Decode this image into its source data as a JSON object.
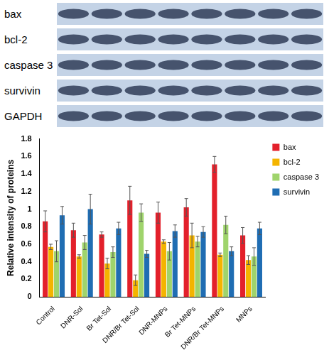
{
  "blot_labels": [
    "bax",
    "bcl-2",
    "caspase 3",
    "survivin",
    "GAPDH"
  ],
  "chart_data": {
    "type": "bar",
    "y_label": "Relative intensity of proteins",
    "categories": [
      "Control",
      "DNR-Sol",
      "Br Tet-Sol",
      "DNR/Br Tet-Sol",
      "DNR-MNPs",
      "Br Tet-MNPs",
      "DNR/Br Tet-MNPs",
      "MNPs"
    ],
    "series": [
      {
        "name": "bax",
        "color": "#e3202b",
        "values": [
          0.86,
          0.76,
          0.71,
          1.1,
          0.96,
          1.02,
          1.51,
          0.7
        ],
        "errors": [
          0.12,
          0.08,
          0.03,
          0.16,
          0.12,
          0.1,
          0.09,
          0.09
        ]
      },
      {
        "name": "bcl-2",
        "color": "#f4b400",
        "values": [
          0.57,
          0.46,
          0.38,
          0.19,
          0.63,
          0.7,
          0.48,
          0.42
        ],
        "errors": [
          0.03,
          0.02,
          0.06,
          0.06,
          0.02,
          0.14,
          0.02,
          0.05
        ]
      },
      {
        "name": "caspase 3",
        "color": "#9fd46c",
        "values": [
          0.52,
          0.62,
          0.51,
          0.96,
          0.52,
          0.63,
          0.82,
          0.46
        ],
        "errors": [
          0.12,
          0.08,
          0.06,
          0.1,
          0.1,
          0.06,
          0.1,
          0.1
        ]
      },
      {
        "name": "survivin",
        "color": "#1f6db3",
        "values": [
          0.93,
          1.0,
          0.78,
          0.49,
          0.75,
          0.74,
          0.52,
          0.78
        ],
        "errors": [
          0.1,
          0.17,
          0.07,
          0.04,
          0.07,
          0.06,
          0.05,
          0.07
        ]
      }
    ],
    "ylim": [
      0,
      1.8
    ],
    "yticks": [
      0,
      0.2,
      0.4,
      0.6,
      0.8,
      1,
      1.2,
      1.4,
      1.6,
      1.8
    ],
    "grid": false,
    "legend": "right"
  }
}
